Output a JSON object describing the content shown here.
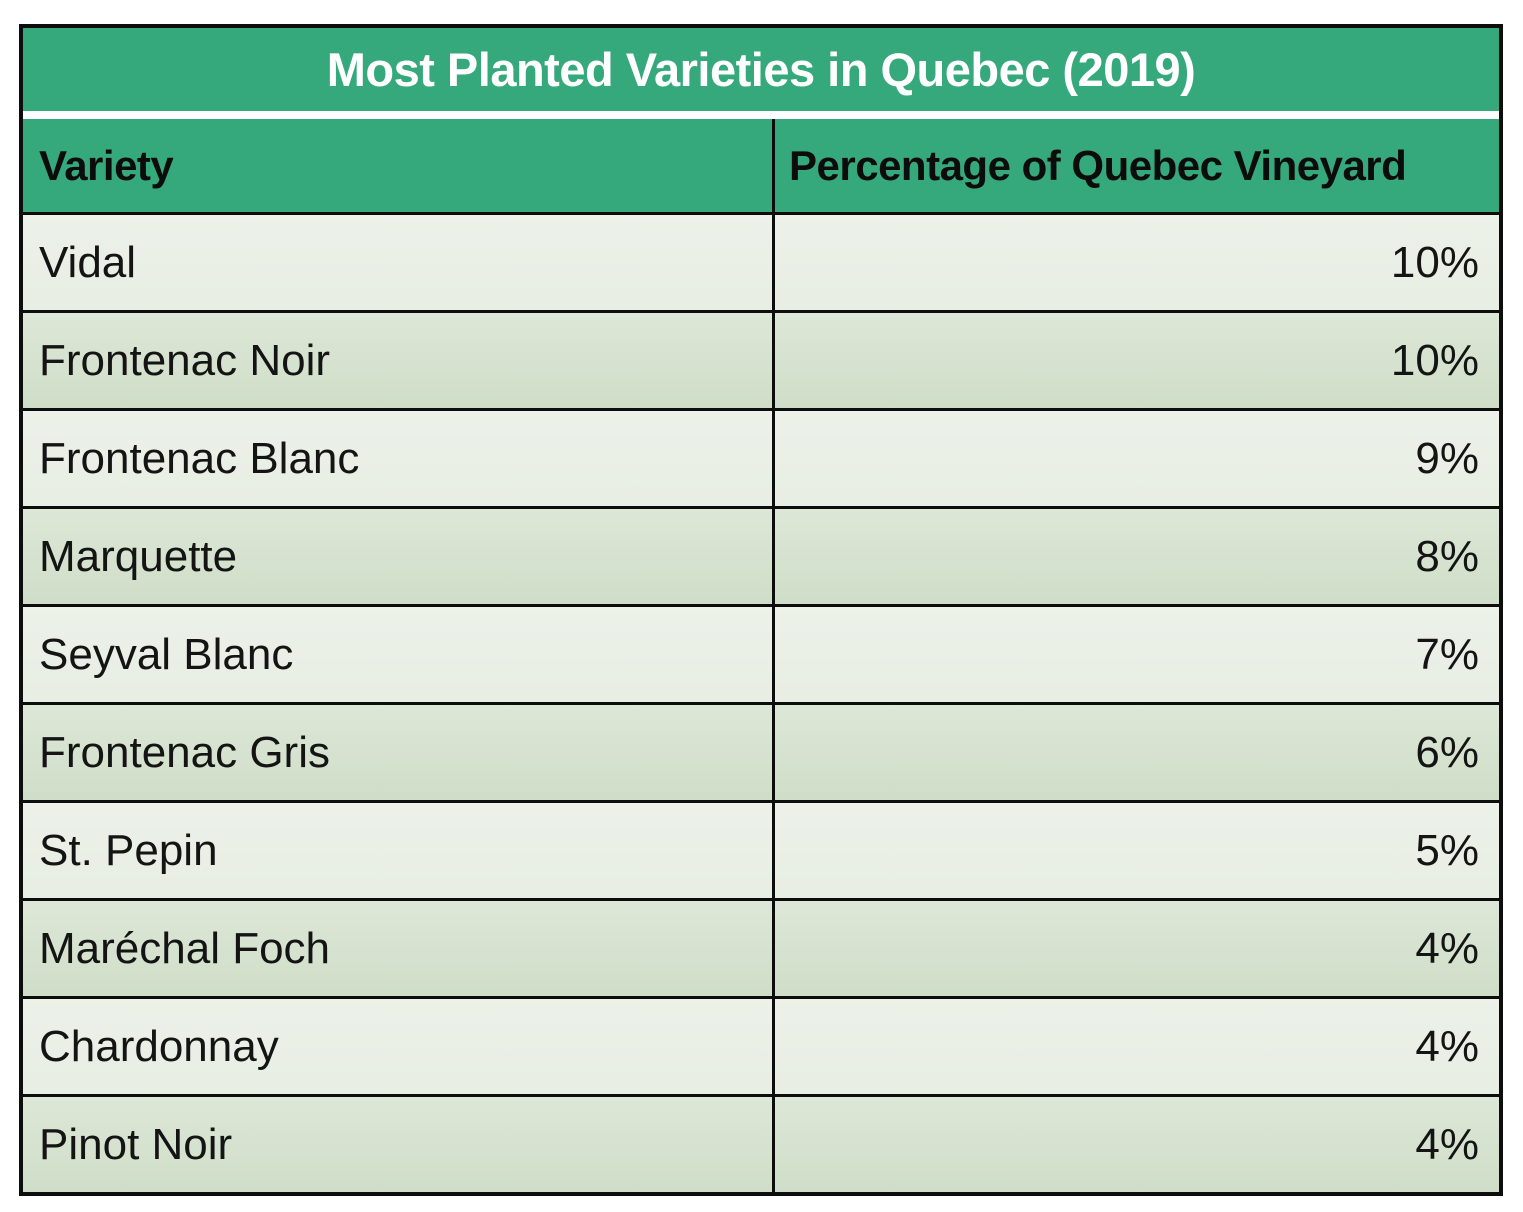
{
  "table": {
    "title": "Most Planted Varieties in Quebec (2019)",
    "columns": [
      {
        "label": "Variety"
      },
      {
        "label": "Percentage of Quebec Vineyard"
      }
    ],
    "rows": [
      {
        "variety": "Vidal",
        "percentage": "10%"
      },
      {
        "variety": "Frontenac Noir",
        "percentage": "10%"
      },
      {
        "variety": "Frontenac Blanc",
        "percentage": "9%"
      },
      {
        "variety": "Marquette",
        "percentage": "8%"
      },
      {
        "variety": "Seyval Blanc",
        "percentage": "7%"
      },
      {
        "variety": "Frontenac Gris",
        "percentage": "6%"
      },
      {
        "variety": "St. Pepin",
        "percentage": "5%"
      },
      {
        "variety": "Maréchal Foch",
        "percentage": "4%"
      },
      {
        "variety": "Chardonnay",
        "percentage": "4%"
      },
      {
        "variety": "Pinot Noir",
        "percentage": "4%"
      }
    ]
  },
  "colors": {
    "accent_green": "#36a97c",
    "row_light": "#eaefe7",
    "row_dark": "#d5e2ce",
    "border_black": "#0d0d0d",
    "title_text": "#ffffff",
    "body_text": "#141414"
  },
  "chart_data": {
    "type": "table",
    "title": "Most Planted Varieties in Quebec (2019)",
    "columns": [
      "Variety",
      "Percentage of Quebec Vineyard"
    ],
    "categories": [
      "Vidal",
      "Frontenac Noir",
      "Frontenac Blanc",
      "Marquette",
      "Seyval Blanc",
      "Frontenac Gris",
      "St. Pepin",
      "Maréchal Foch",
      "Chardonnay",
      "Pinot Noir"
    ],
    "values": [
      10,
      10,
      9,
      8,
      7,
      6,
      5,
      4,
      4,
      4
    ],
    "unit": "%"
  }
}
